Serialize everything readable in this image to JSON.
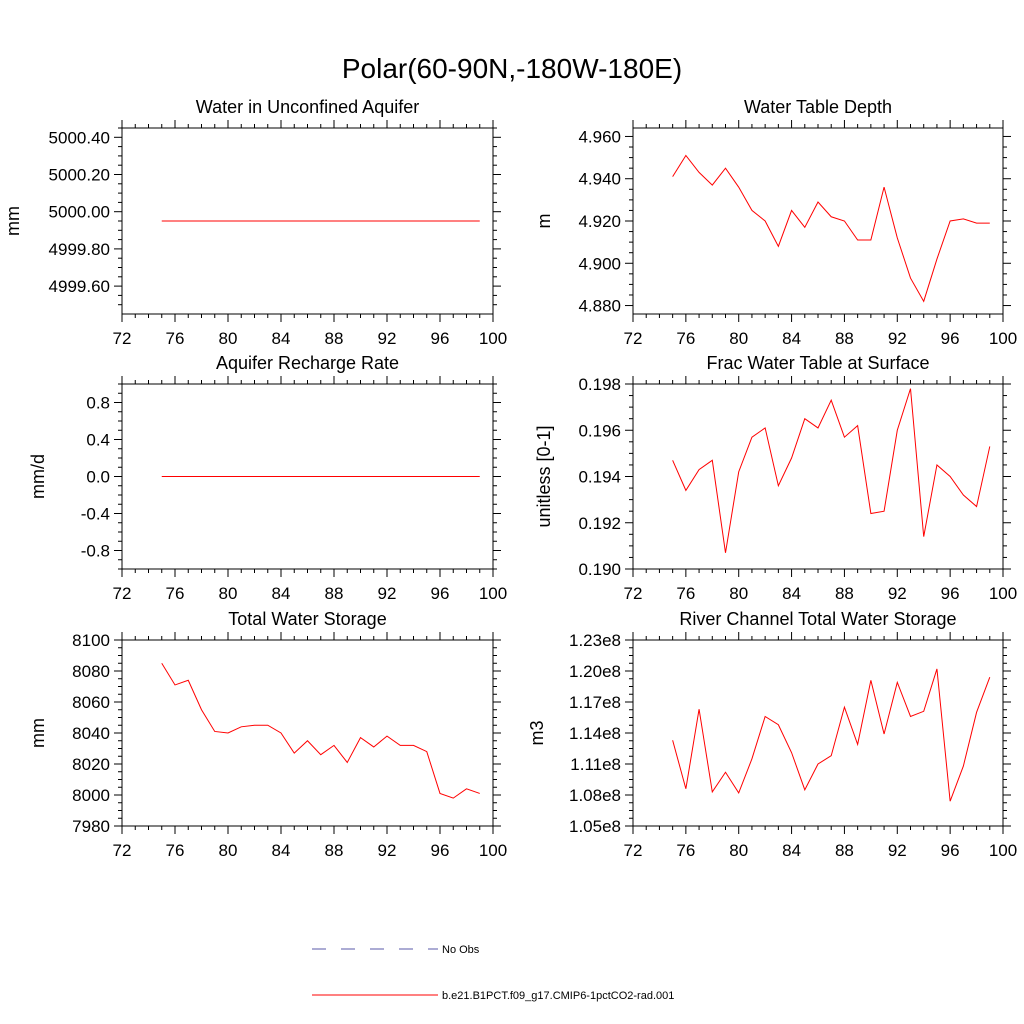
{
  "figure": {
    "title": "Polar(60-90N,-180W-180E)"
  },
  "legend": {
    "entries": [
      {
        "label": "No Obs",
        "color": "#5a5aa8",
        "style": "dashed"
      },
      {
        "label": "b.e21.B1PCT.f09_g17.CMIP6-1pctCO2-rad.001",
        "color": "#ff0000",
        "style": "solid"
      }
    ]
  },
  "chart_data": [
    {
      "type": "line",
      "title": "Water in Unconfined Aquifer",
      "ylabel": "mm",
      "xlim": [
        72,
        100
      ],
      "ylim": [
        4999.45,
        5000.45
      ],
      "xticks": [
        72,
        76,
        80,
        84,
        88,
        92,
        96,
        100
      ],
      "yticks": [
        5000.4,
        5000.2,
        5000.0,
        4999.8,
        4999.6
      ],
      "yticklabels": [
        "5000.40",
        "5000.20",
        "5000.00",
        "4999.80",
        "4999.60"
      ],
      "series": [
        {
          "color": "#ff0000",
          "x": [
            75,
            76,
            77,
            78,
            79,
            80,
            81,
            82,
            83,
            84,
            85,
            86,
            87,
            88,
            89,
            90,
            91,
            92,
            93,
            94,
            95,
            96,
            97,
            98,
            99
          ],
          "values": [
            4999.95,
            4999.95,
            4999.95,
            4999.95,
            4999.95,
            4999.95,
            4999.95,
            4999.95,
            4999.95,
            4999.95,
            4999.95,
            4999.95,
            4999.95,
            4999.95,
            4999.95,
            4999.95,
            4999.95,
            4999.95,
            4999.95,
            4999.95,
            4999.95,
            4999.95,
            4999.95,
            4999.95,
            4999.95
          ]
        }
      ]
    },
    {
      "type": "line",
      "title": "Water Table Depth",
      "ylabel": "m",
      "xlim": [
        72,
        100
      ],
      "ylim": [
        4.876,
        4.964
      ],
      "xticks": [
        72,
        76,
        80,
        84,
        88,
        92,
        96,
        100
      ],
      "yticks": [
        4.96,
        4.94,
        4.92,
        4.9,
        4.88
      ],
      "yticklabels": [
        "4.960",
        "4.940",
        "4.920",
        "4.900",
        "4.880"
      ],
      "series": [
        {
          "color": "#ff0000",
          "x": [
            75,
            76,
            77,
            78,
            79,
            80,
            81,
            82,
            83,
            84,
            85,
            86,
            87,
            88,
            89,
            90,
            91,
            92,
            93,
            94,
            95,
            96,
            97,
            98,
            99
          ],
          "values": [
            4.941,
            4.951,
            4.943,
            4.937,
            4.945,
            4.936,
            4.925,
            4.92,
            4.908,
            4.925,
            4.917,
            4.929,
            4.922,
            4.92,
            4.911,
            4.911,
            4.936,
            4.912,
            4.893,
            4.882,
            4.902,
            4.92,
            4.921,
            4.919,
            4.919
          ]
        }
      ]
    },
    {
      "type": "line",
      "title": "Aquifer Recharge Rate",
      "ylabel": "mm/d",
      "xlim": [
        72,
        100
      ],
      "ylim": [
        -1.0,
        1.0
      ],
      "xticks": [
        72,
        76,
        80,
        84,
        88,
        92,
        96,
        100
      ],
      "yticks": [
        0.8,
        0.4,
        0.0,
        -0.4,
        -0.8
      ],
      "yticklabels": [
        "0.8",
        "0.4",
        "0.0",
        "-0.4",
        "-0.8"
      ],
      "series": [
        {
          "color": "#ff0000",
          "x": [
            75,
            76,
            77,
            78,
            79,
            80,
            81,
            82,
            83,
            84,
            85,
            86,
            87,
            88,
            89,
            90,
            91,
            92,
            93,
            94,
            95,
            96,
            97,
            98,
            99
          ],
          "values": [
            0,
            0,
            0,
            0,
            0,
            0,
            0,
            0,
            0,
            0,
            0,
            0,
            0,
            0,
            0,
            0,
            0,
            0,
            0,
            0,
            0,
            0,
            0,
            0,
            0
          ]
        }
      ]
    },
    {
      "type": "line",
      "title": "Frac Water Table at Surface",
      "ylabel": "unitless [0-1]",
      "xlim": [
        72,
        100
      ],
      "ylim": [
        0.19,
        0.198
      ],
      "xticks": [
        72,
        76,
        80,
        84,
        88,
        92,
        96,
        100
      ],
      "yticks": [
        0.198,
        0.196,
        0.194,
        0.192,
        0.19
      ],
      "yticklabels": [
        "0.198",
        "0.196",
        "0.194",
        "0.192",
        "0.190"
      ],
      "series": [
        {
          "color": "#ff0000",
          "x": [
            75,
            76,
            77,
            78,
            79,
            80,
            81,
            82,
            83,
            84,
            85,
            86,
            87,
            88,
            89,
            90,
            91,
            92,
            93,
            94,
            95,
            96,
            97,
            98,
            99
          ],
          "values": [
            0.1947,
            0.1934,
            0.1943,
            0.1947,
            0.1907,
            0.1942,
            0.1957,
            0.1961,
            0.1936,
            0.1948,
            0.1965,
            0.1961,
            0.1973,
            0.1957,
            0.1962,
            0.1924,
            0.1925,
            0.196,
            0.1978,
            0.1914,
            0.1945,
            0.194,
            0.1932,
            0.1927,
            0.1953
          ]
        }
      ]
    },
    {
      "type": "line",
      "title": "Total Water Storage",
      "ylabel": "mm",
      "xlim": [
        72,
        100
      ],
      "ylim": [
        7980,
        8100
      ],
      "xticks": [
        72,
        76,
        80,
        84,
        88,
        92,
        96,
        100
      ],
      "yticks": [
        8100,
        8080,
        8060,
        8040,
        8020,
        8000,
        7980
      ],
      "yticklabels": [
        "8100",
        "8080",
        "8060",
        "8040",
        "8020",
        "8000",
        "7980"
      ],
      "series": [
        {
          "color": "#ff0000",
          "x": [
            75,
            76,
            77,
            78,
            79,
            80,
            81,
            82,
            83,
            84,
            85,
            86,
            87,
            88,
            89,
            90,
            91,
            92,
            93,
            94,
            95,
            96,
            97,
            98,
            99
          ],
          "values": [
            8085,
            8071,
            8074,
            8055,
            8041,
            8040,
            8044,
            8045,
            8045,
            8040,
            8027,
            8035,
            8026,
            8032,
            8021,
            8037,
            8031,
            8038,
            8032,
            8032,
            8028,
            8001,
            7998,
            8004,
            8001
          ]
        }
      ]
    },
    {
      "type": "line",
      "title": "River Channel Total Water Storage",
      "ylabel": "m3",
      "xlim": [
        72,
        100
      ],
      "ylim": [
        105000000,
        123000000
      ],
      "xticks": [
        72,
        76,
        80,
        84,
        88,
        92,
        96,
        100
      ],
      "yticks": [
        123000000,
        120000000,
        117000000,
        114000000,
        111000000,
        108000000,
        105000000
      ],
      "yticklabels": [
        "1.23e8",
        "1.20e8",
        "1.17e8",
        "1.14e8",
        "1.11e8",
        "1.08e8",
        "1.05e8"
      ],
      "series": [
        {
          "color": "#ff0000",
          "x": [
            75,
            76,
            77,
            78,
            79,
            80,
            81,
            82,
            83,
            84,
            85,
            86,
            87,
            88,
            89,
            90,
            91,
            92,
            93,
            94,
            95,
            96,
            97,
            98,
            99
          ],
          "values": [
            113300000,
            108600000,
            116300000,
            108300000,
            110200000,
            108200000,
            111500000,
            115600000,
            114800000,
            112100000,
            108500000,
            111000000,
            111800000,
            116500000,
            112900000,
            119100000,
            113900000,
            118900000,
            115600000,
            116100000,
            120200000,
            107400000,
            110800000,
            116000000,
            119400000
          ]
        }
      ]
    }
  ]
}
